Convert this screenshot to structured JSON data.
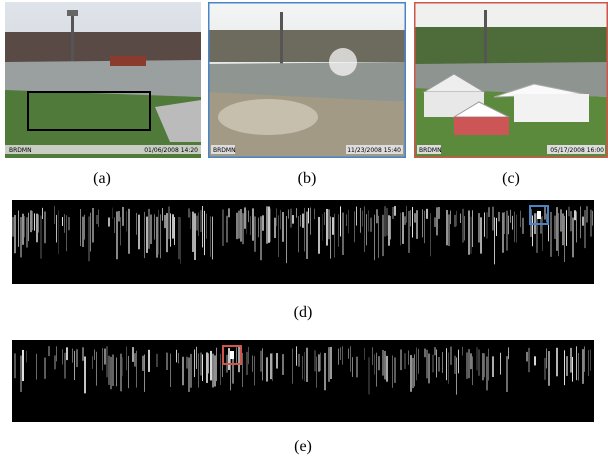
{
  "panels": [
    {
      "label": "(a)",
      "camera": "BRDMN",
      "timestamp": "01/06/2008 14:20"
    },
    {
      "label": "(b)",
      "camera": "BRDMN",
      "timestamp": "11/23/2008 15:40"
    },
    {
      "label": "(c)",
      "camera": "BRDMN",
      "timestamp": "05/17/2008 16:00"
    }
  ],
  "strips": [
    {
      "label": "(d)"
    },
    {
      "label": "(e)"
    }
  ]
}
